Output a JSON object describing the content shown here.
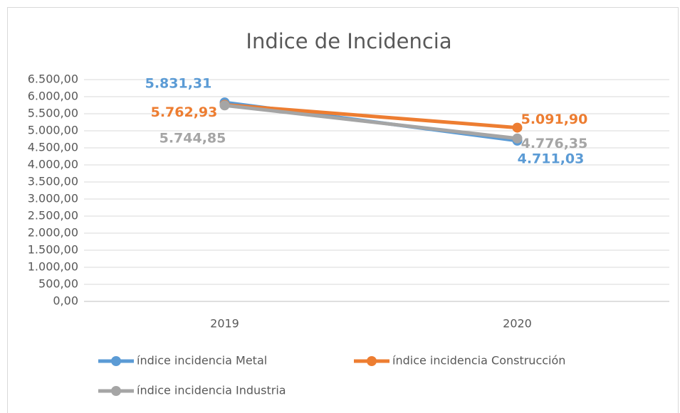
{
  "chart_data": {
    "type": "line",
    "title": "Indice de Incidencia",
    "categories": [
      "2019",
      "2020"
    ],
    "series": [
      {
        "name": "índice incidencia Metal",
        "color": "#5b9bd5",
        "values": [
          5831.31,
          4711.03
        ],
        "value_labels": [
          "5.831,31",
          "4.711,03"
        ]
      },
      {
        "name": "índice incidencia Construcción",
        "color": "#ed7d31",
        "values": [
          5762.93,
          5091.9
        ],
        "value_labels": [
          "5.762,93",
          "5.091,90"
        ]
      },
      {
        "name": "índice incidencia Industria",
        "color": "#a5a5a5",
        "values": [
          5744.85,
          4776.35
        ],
        "value_labels": [
          "5.744,85",
          "4.776,35"
        ]
      }
    ],
    "ylim": [
      0,
      6500
    ],
    "yticks": [
      {
        "value": 0,
        "label": "0,00"
      },
      {
        "value": 500,
        "label": "500,00"
      },
      {
        "value": 1000,
        "label": "1.000,00"
      },
      {
        "value": 1500,
        "label": "1.500,00"
      },
      {
        "value": 2000,
        "label": "2.000,00"
      },
      {
        "value": 2500,
        "label": "2.500,00"
      },
      {
        "value": 3000,
        "label": "3.000,00"
      },
      {
        "value": 3500,
        "label": "3.500,00"
      },
      {
        "value": 4000,
        "label": "4.000,00"
      },
      {
        "value": 4500,
        "label": "4.500,00"
      },
      {
        "value": 5000,
        "label": "5.000,00"
      },
      {
        "value": 5500,
        "label": "5.500,00"
      },
      {
        "value": 6000,
        "label": "6.000,00"
      },
      {
        "value": 6500,
        "label": "6.500,00"
      }
    ],
    "grid": true,
    "legend": "bottom"
  }
}
